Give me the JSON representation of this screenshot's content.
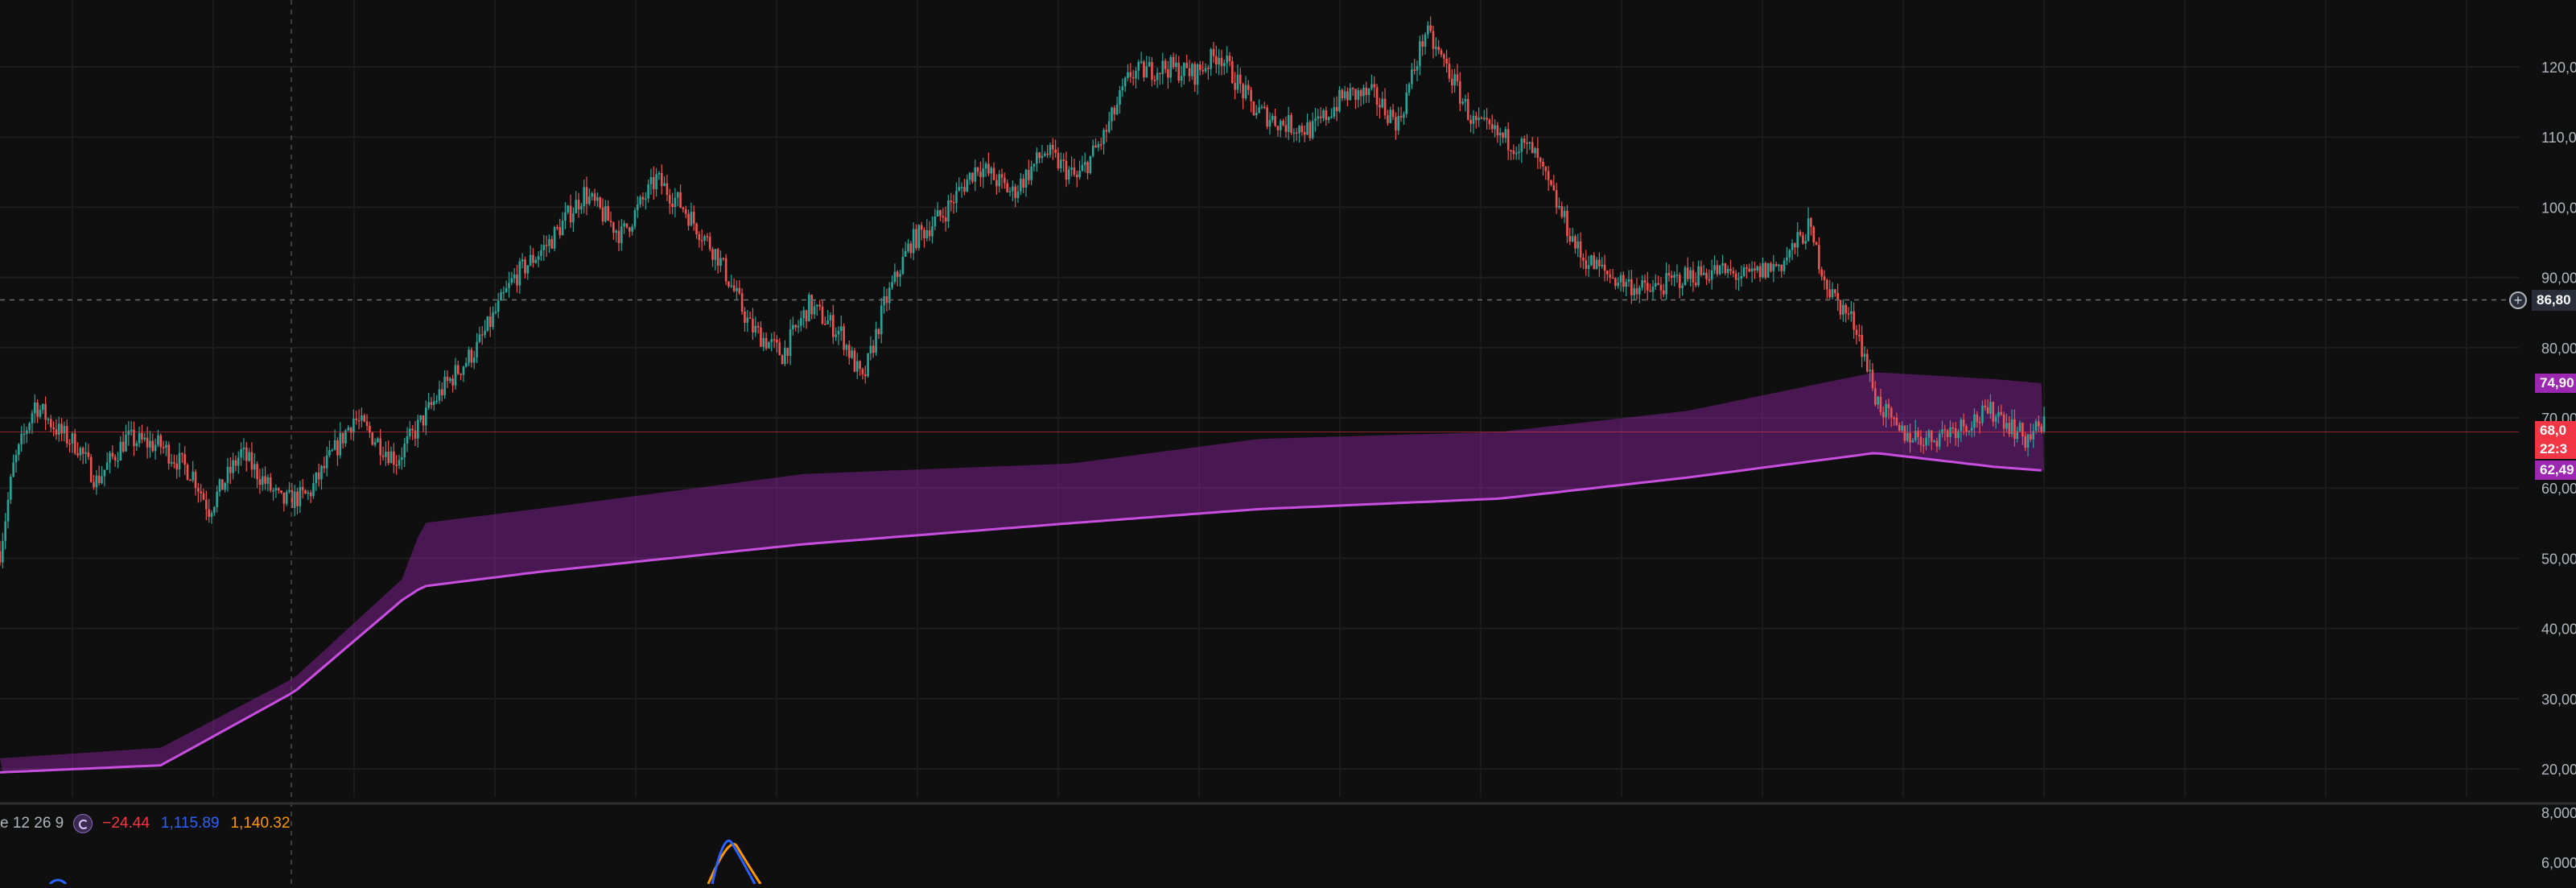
{
  "chart_data": [
    {
      "type": "candlestick",
      "y_axis": {
        "range": [
          17,
          128
        ],
        "tick_labels": [
          "120,0",
          "110,0",
          "100,0",
          "90,00",
          "80,00",
          "70,00",
          "60,00",
          "50,00",
          "40,00",
          "30,00",
          "20,00"
        ],
        "tick_values": [
          120,
          110,
          100,
          90,
          80,
          70,
          60,
          50,
          40,
          30,
          20
        ]
      },
      "crosshair": {
        "label": "86,80",
        "value": 86.8
      },
      "price_labels": [
        {
          "text": "74,90",
          "value": 74.9,
          "color": "#9c27b0"
        },
        {
          "text": "68,0",
          "value": 68.0,
          "color": "#f23645"
        },
        {
          "text": "22:3",
          "value": 66.0,
          "color": "#f23645"
        },
        {
          "text": "62,49",
          "value": 62.49,
          "color": "#9c27b0"
        }
      ],
      "grid": true,
      "price_path": [
        [
          0,
          51
        ],
        [
          5,
          63
        ],
        [
          13,
          72
        ],
        [
          22,
          68
        ],
        [
          29,
          66
        ],
        [
          36,
          61
        ],
        [
          47,
          67
        ],
        [
          60,
          66
        ],
        [
          72,
          62
        ],
        [
          78,
          57
        ],
        [
          90,
          65
        ],
        [
          105,
          58
        ],
        [
          115,
          59
        ],
        [
          126,
          66
        ],
        [
          132,
          70
        ],
        [
          148,
          64
        ],
        [
          165,
          74
        ],
        [
          178,
          80
        ],
        [
          192,
          90
        ],
        [
          205,
          95
        ],
        [
          218,
          102
        ],
        [
          232,
          96
        ],
        [
          245,
          104
        ],
        [
          255,
          100
        ],
        [
          268,
          93
        ],
        [
          280,
          83
        ],
        [
          292,
          79
        ],
        [
          302,
          86
        ],
        [
          314,
          82
        ],
        [
          322,
          75
        ],
        [
          330,
          86
        ],
        [
          340,
          95
        ],
        [
          352,
          99
        ],
        [
          365,
          106
        ],
        [
          378,
          102
        ],
        [
          390,
          108
        ],
        [
          402,
          104
        ],
        [
          412,
          110
        ],
        [
          422,
          119
        ],
        [
          435,
          120
        ],
        [
          446,
          119
        ],
        [
          455,
          122
        ],
        [
          468,
          114
        ],
        [
          478,
          112
        ],
        [
          490,
          111
        ],
        [
          502,
          116
        ],
        [
          512,
          116
        ],
        [
          522,
          112
        ],
        [
          532,
          125
        ],
        [
          540,
          120
        ],
        [
          550,
          112
        ],
        [
          560,
          110
        ],
        [
          572,
          108
        ],
        [
          578,
          103
        ],
        [
          590,
          93
        ],
        [
          602,
          90
        ],
        [
          615,
          88
        ],
        [
          628,
          90
        ],
        [
          640,
          91
        ],
        [
          652,
          90
        ],
        [
          665,
          92
        ],
        [
          675,
          97
        ],
        [
          683,
          88
        ],
        [
          693,
          83
        ],
        [
          700,
          73
        ],
        [
          708,
          68
        ],
        [
          720,
          67
        ],
        [
          732,
          69
        ],
        [
          745,
          71
        ],
        [
          756,
          67
        ],
        [
          763,
          69
        ]
      ],
      "band": {
        "color": "#9c27b0",
        "upper": [
          [
            0,
            21.5
          ],
          [
            60,
            23
          ],
          [
            110,
            33
          ],
          [
            150,
            47
          ],
          [
            158,
            55
          ],
          [
            200,
            57
          ],
          [
            300,
            62
          ],
          [
            400,
            63.5
          ],
          [
            470,
            67
          ],
          [
            560,
            68
          ],
          [
            630,
            71
          ],
          [
            700,
            76.5
          ],
          [
            745,
            75.5
          ],
          [
            763,
            74.9
          ]
        ],
        "lower": [
          [
            0,
            19.5
          ],
          [
            60,
            20.5
          ],
          [
            110,
            31
          ],
          [
            150,
            44
          ],
          [
            158,
            46
          ],
          [
            200,
            48
          ],
          [
            300,
            52
          ],
          [
            400,
            55
          ],
          [
            470,
            57
          ],
          [
            560,
            58.5
          ],
          [
            630,
            61.5
          ],
          [
            700,
            65
          ],
          [
            745,
            63
          ],
          [
            763,
            62.49
          ]
        ]
      }
    },
    {
      "type": "line",
      "legend": {
        "name_fragment": "e 12 26 9",
        "values": [
          {
            "text": "−24.44",
            "color": "#f23645"
          },
          {
            "text": "1,115.89",
            "color": "#2962ff"
          },
          {
            "text": "1,140.32",
            "color": "#ff9800"
          }
        ]
      },
      "y_axis": {
        "tick_labels": [
          "8,000",
          "6,000"
        ],
        "tick_values": [
          8000,
          6000
        ]
      }
    }
  ]
}
